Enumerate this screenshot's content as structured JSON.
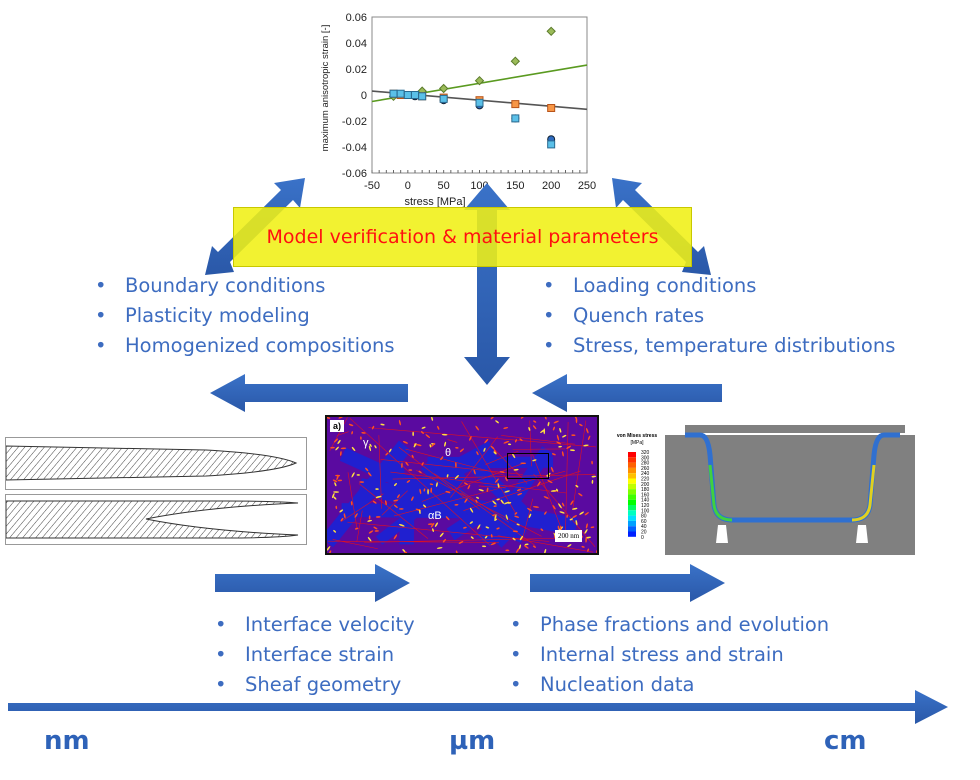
{
  "banner": {
    "text": "Model verification & material parameters",
    "bg_color": "#f0f020",
    "text_color": "#ff1010"
  },
  "top_left_list": [
    "Boundary conditions",
    "Plasticity modeling",
    "Homogenized compositions"
  ],
  "top_right_list": [
    "Loading conditions",
    "Quench rates",
    "Stress, temperature distributions"
  ],
  "bottom_left_list": [
    "Interface velocity",
    "Interface strain",
    "Sheaf geometry"
  ],
  "bottom_right_list": [
    "Phase fractions and evolution",
    "Internal stress and strain",
    "Nucleation data"
  ],
  "bullet": "•",
  "scale_labels": {
    "nm": "nm",
    "um": "µm",
    "cm": "cm"
  },
  "arrow_color": "#2e62b8",
  "micrograph": {
    "panel_label": "a)",
    "phase_gamma": "γ",
    "phase_theta": "θ",
    "phase_alpha": "αB",
    "scale_bar": "200 nm"
  },
  "fea": {
    "colorbar_title": "von Mises stress",
    "colorbar_unit": "[MPa]",
    "colorbar_ticks": [
      "320",
      "300",
      "280",
      "260",
      "240",
      "220",
      "200",
      "180",
      "160",
      "140",
      "120",
      "100",
      "80",
      "60",
      "40",
      "20",
      "0"
    ]
  },
  "chart_data": {
    "type": "scatter",
    "xlabel": "stress [MPa]",
    "ylabel": "maximum anisotropic strain [-]",
    "xlim": [
      -50,
      250
    ],
    "ylim": [
      -0.06,
      0.06
    ],
    "xticks": [
      "-50",
      "0",
      "50",
      "100",
      "150",
      "200",
      "250"
    ],
    "yticks": [
      "0.06",
      "0.04",
      "0.02",
      "0",
      "-0.02",
      "-0.04",
      "-0.06"
    ],
    "series": [
      {
        "marker": "diamond",
        "color": "#9bbb59",
        "x": [
          -20,
          20,
          50,
          100,
          150,
          200
        ],
        "y": [
          -0.001,
          0.003,
          0.005,
          0.011,
          0.026,
          0.049
        ]
      },
      {
        "marker": "square",
        "color": "#f79646",
        "x": [
          -20,
          -10,
          20,
          50,
          100,
          150,
          200
        ],
        "y": [
          0.001,
          0.0,
          -0.001,
          -0.002,
          -0.004,
          -0.007,
          -0.01
        ]
      },
      {
        "marker": "circle",
        "color": "#2e6cc0",
        "x": [
          0,
          10,
          50,
          100,
          150,
          200
        ],
        "y": [
          0.0,
          -0.001,
          -0.004,
          -0.008,
          -0.018,
          -0.034
        ]
      },
      {
        "marker": "square",
        "color": "#5bc0e8",
        "x": [
          -20,
          -10,
          0,
          10,
          20,
          50,
          100,
          150,
          200
        ],
        "y": [
          0.001,
          0.001,
          0.0,
          0.0,
          -0.001,
          -0.003,
          -0.006,
          -0.018,
          -0.038
        ]
      }
    ],
    "trendlines": [
      {
        "color": "#5a9a20",
        "x": [
          -50,
          250
        ],
        "y": [
          -0.005,
          0.023
        ]
      },
      {
        "color": "#555555",
        "x": [
          -50,
          250
        ],
        "y": [
          0.003,
          -0.011
        ]
      }
    ]
  }
}
